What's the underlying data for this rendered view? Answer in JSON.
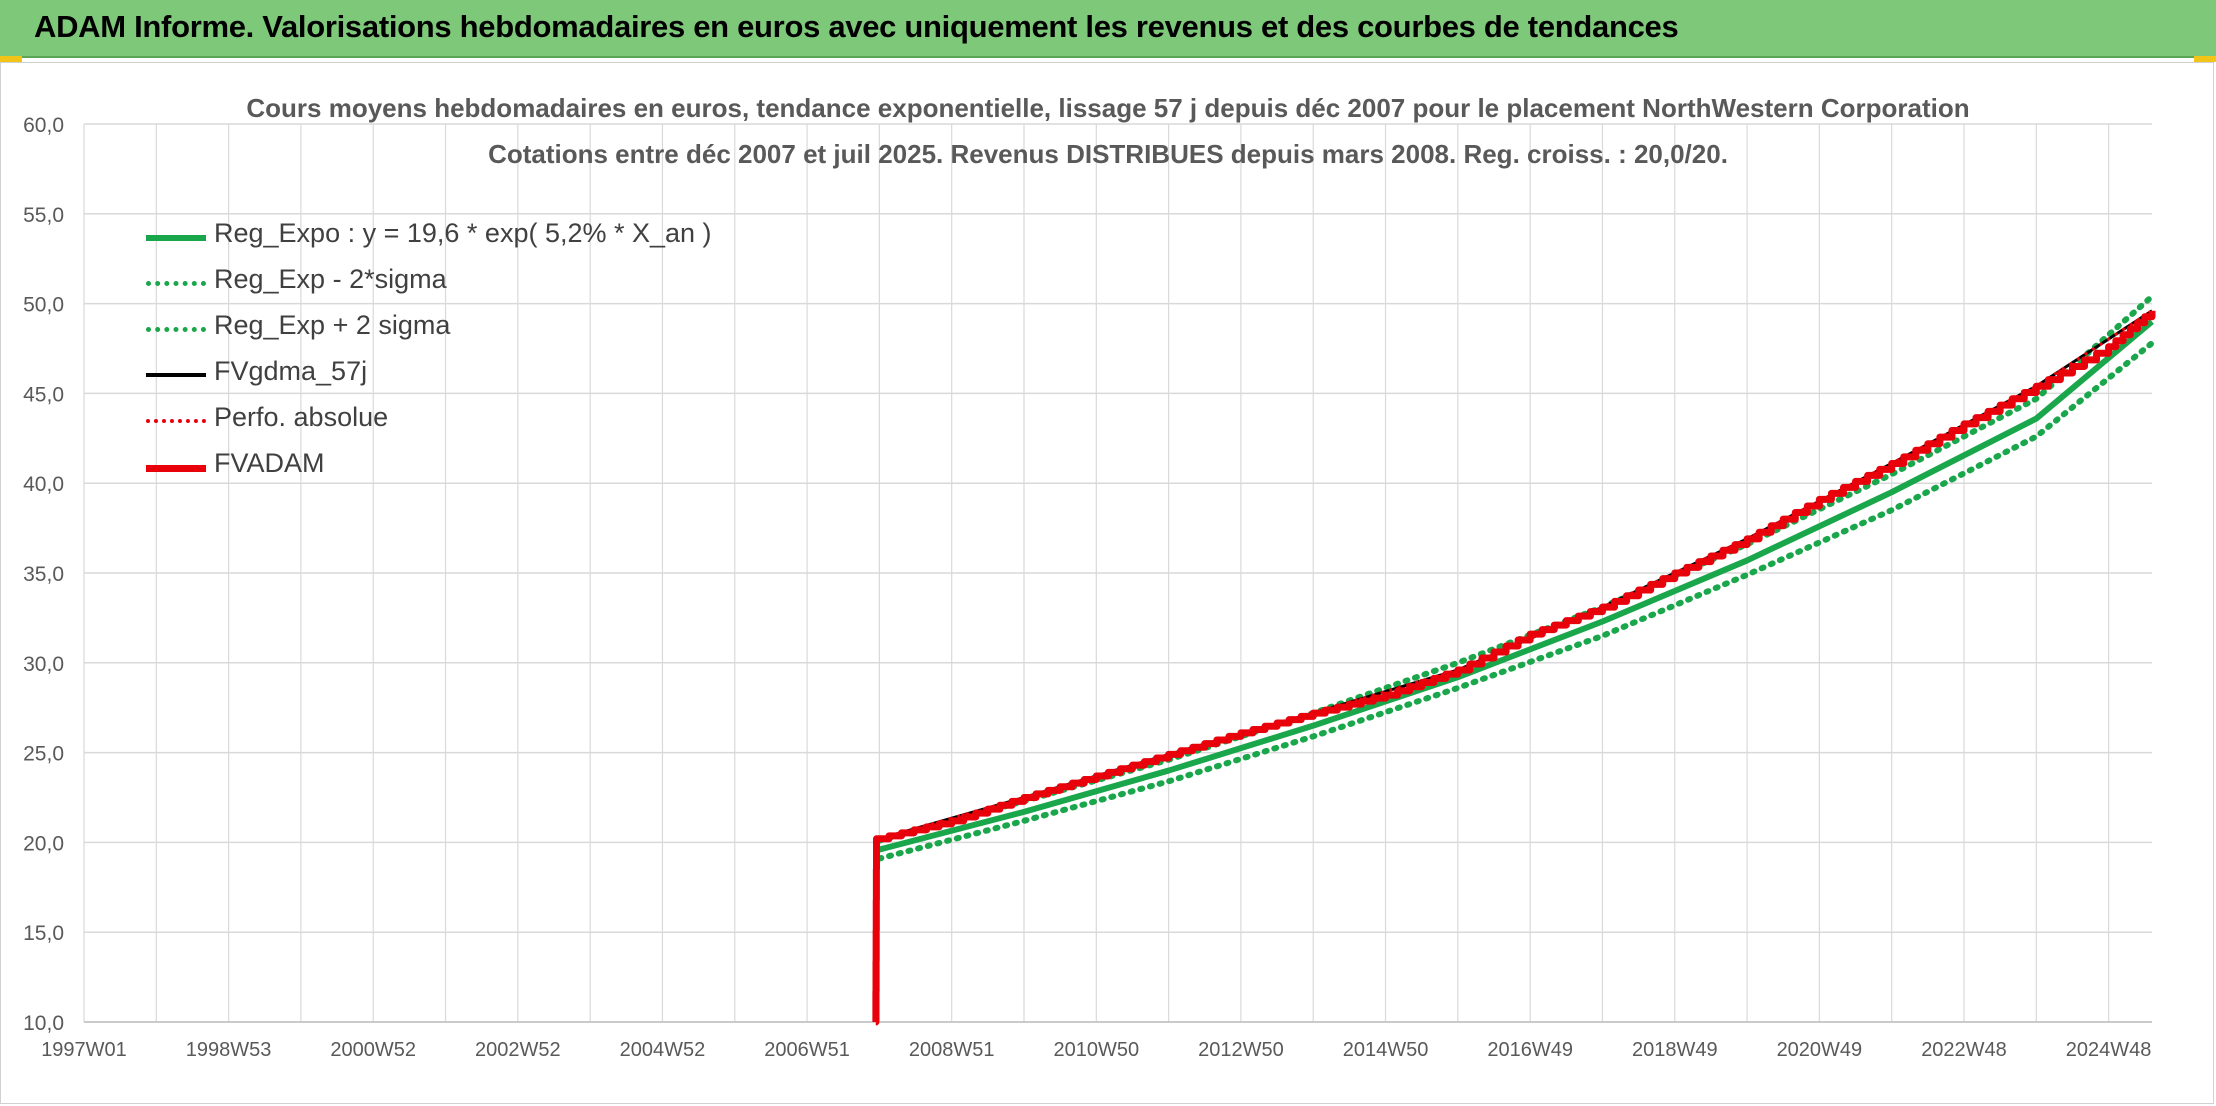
{
  "banner": {
    "title": "ADAM Informe. Valorisations hebdomadaires en euros avec uniquement les revenus et des courbes de tendances"
  },
  "colors": {
    "banner_bg": "#7ec87a",
    "trend": "#1aa64a",
    "fvadam": "#e8000b",
    "fvgdma": "#000000",
    "perfo": "#e8000b",
    "grid": "#d9d9d9"
  },
  "chart_data": {
    "type": "line",
    "title": "Cours moyens hebdomadaires en euros, tendance exponentielle, lissage 57 j depuis déc 2007 pour le placement NorthWestern Corporation",
    "subtitle": "Cotations entre déc 2007 et juil 2025. Revenus DISTRIBUES depuis mars 2008. Reg. croiss. : 20,0/20.",
    "xlabel": "",
    "ylabel": "",
    "ylim": [
      10,
      60
    ],
    "y_ticks": [
      "10,0",
      "15,0",
      "20,0",
      "25,0",
      "30,0",
      "35,0",
      "40,0",
      "45,0",
      "50,0",
      "55,0",
      "60,0"
    ],
    "x_tick_labels": [
      "1997W01",
      "1998W53",
      "2000W52",
      "2002W52",
      "2004W52",
      "2006W51",
      "2008W51",
      "2010W50",
      "2012W50",
      "2014W50",
      "2016W49",
      "2018W49",
      "2020W49",
      "2022W48",
      "2024W48"
    ],
    "xlim": [
      1997.0,
      2025.6
    ],
    "grid": true,
    "legend_position": "top-left",
    "series": [
      {
        "name": "Reg_Expo : y = 19,6 * exp( 5,2% *  X_an )",
        "style": "solid",
        "color": "#1aa64a",
        "x": [
          2008.0,
          2010.0,
          2012.0,
          2014.0,
          2016.0,
          2018.0,
          2020.0,
          2022.0,
          2024.0,
          2025.6
        ],
        "values": [
          19.6,
          21.7,
          24.0,
          26.5,
          29.2,
          32.3,
          35.7,
          39.5,
          43.6,
          49.0
        ]
      },
      {
        "name": "Reg_Exp - 2*sigma",
        "style": "dotted",
        "color": "#1aa64a",
        "x": [
          2008.0,
          2010.0,
          2012.0,
          2014.0,
          2016.0,
          2018.0,
          2020.0,
          2022.0,
          2024.0,
          2025.6
        ],
        "values": [
          19.1,
          21.2,
          23.4,
          25.9,
          28.6,
          31.5,
          34.9,
          38.5,
          42.6,
          47.8
        ]
      },
      {
        "name": "Reg_Exp + 2 sigma",
        "style": "dotted",
        "color": "#1aa64a",
        "x": [
          2008.0,
          2010.0,
          2012.0,
          2014.0,
          2016.0,
          2018.0,
          2020.0,
          2022.0,
          2024.0,
          2025.6
        ],
        "values": [
          20.1,
          22.3,
          24.6,
          27.2,
          30.0,
          33.1,
          36.6,
          40.5,
          44.7,
          50.4
        ]
      },
      {
        "name": "FVgdma_57j",
        "style": "solid",
        "color": "#000000",
        "x": [
          2008.0,
          2010.0,
          2012.0,
          2014.0,
          2016.0,
          2018.0,
          2020.0,
          2022.0,
          2024.0,
          2025.6
        ],
        "values": [
          20.2,
          22.5,
          24.9,
          27.2,
          29.6,
          33.1,
          36.9,
          41.1,
          45.4,
          49.6
        ]
      },
      {
        "name": "Perfo. absolue",
        "style": "dotted",
        "color": "#e8000b",
        "x": [
          2008.0,
          2010.0,
          2012.0,
          2014.0,
          2016.0,
          2018.0,
          2020.0,
          2022.0,
          2024.0,
          2025.6
        ],
        "values": [
          20.2,
          22.5,
          24.9,
          27.2,
          29.6,
          33.1,
          36.9,
          41.1,
          45.4,
          49.6
        ]
      },
      {
        "name": "FVADAM",
        "style": "solid",
        "color": "#e8000b",
        "x": [
          2007.95,
          2007.96,
          2009.0,
          2010.0,
          2011.0,
          2012.0,
          2013.0,
          2014.0,
          2015.0,
          2016.0,
          2017.0,
          2018.0,
          2019.0,
          2020.0,
          2021.0,
          2022.0,
          2023.0,
          2024.0,
          2025.0,
          2025.6
        ],
        "values": [
          10.0,
          20.2,
          21.2,
          22.5,
          23.7,
          24.9,
          26.1,
          27.2,
          28.2,
          29.6,
          31.6,
          33.1,
          35.0,
          36.9,
          39.1,
          41.1,
          43.3,
          45.4,
          47.6,
          49.6
        ]
      }
    ]
  }
}
